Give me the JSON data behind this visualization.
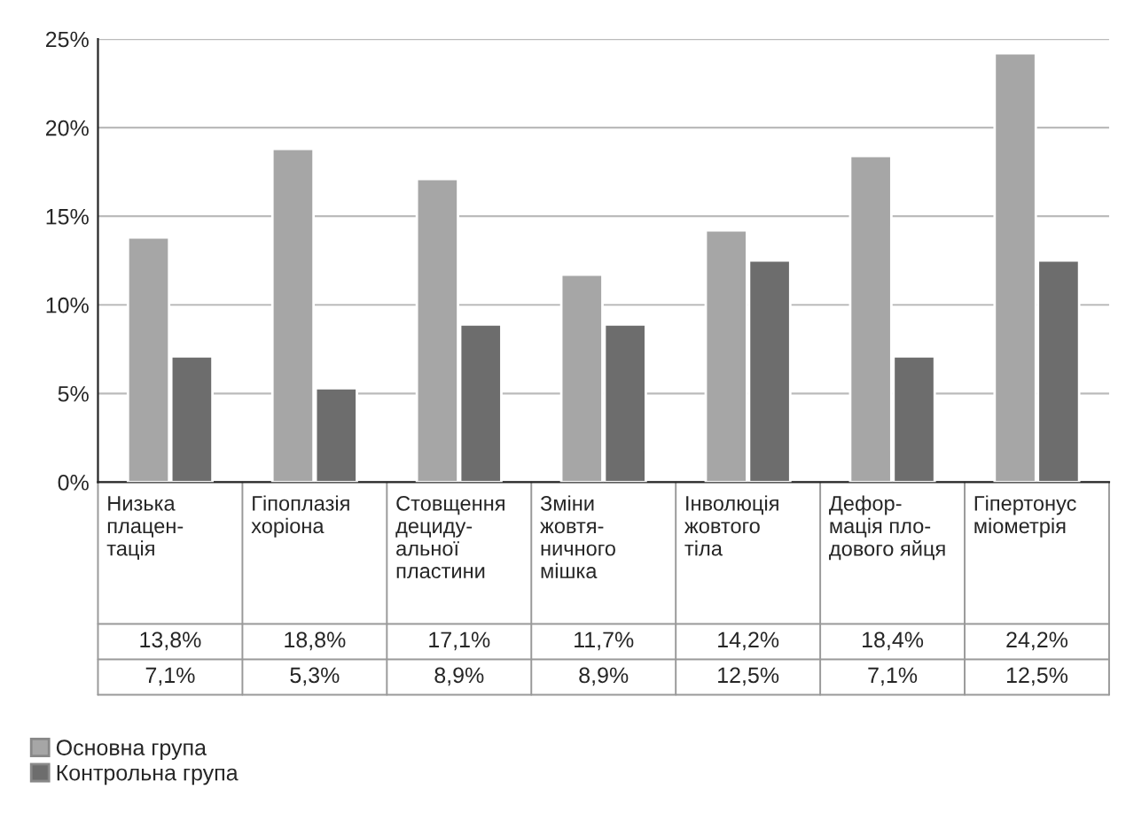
{
  "chart_data": {
    "type": "bar",
    "categories": [
      "Низька\nплацен-\nтація",
      "Гіпоплазія\nхоріона",
      "Стовщення\nдециду-\nальної\nпластини",
      "Зміни\nжовтя-\nничного\nмішка",
      "Інволюція\nжовтого\nтіла",
      "Дефор-\nмація пло-\nдового яйця",
      "Гіпертонус\nміометрія"
    ],
    "series": [
      {
        "name": "Основна група",
        "color": "#a6a6a6",
        "values": [
          13.8,
          18.8,
          17.1,
          11.7,
          14.2,
          18.4,
          24.2
        ],
        "value_labels": [
          "13,8%",
          "18,8%",
          "17,1%",
          "11,7%",
          "14,2%",
          "18,4%",
          "24,2%"
        ]
      },
      {
        "name": "Контрольна група",
        "color": "#6d6d6d",
        "values": [
          7.1,
          5.3,
          8.9,
          8.9,
          12.5,
          7.1,
          12.5
        ],
        "value_labels": [
          "7,1%",
          "5,3%",
          "8,9%",
          "8,9%",
          "12,5%",
          "7,1%",
          "12,5%"
        ]
      }
    ],
    "ylim": [
      0,
      25
    ],
    "yticks": [
      {
        "value": 0,
        "label": "0%"
      },
      {
        "value": 5,
        "label": "5%"
      },
      {
        "value": 10,
        "label": "10%"
      },
      {
        "value": 15,
        "label": "15%"
      },
      {
        "value": 20,
        "label": "20%"
      },
      {
        "value": 25,
        "label": "25%"
      }
    ],
    "grid": "y",
    "legend": "bottom left"
  }
}
